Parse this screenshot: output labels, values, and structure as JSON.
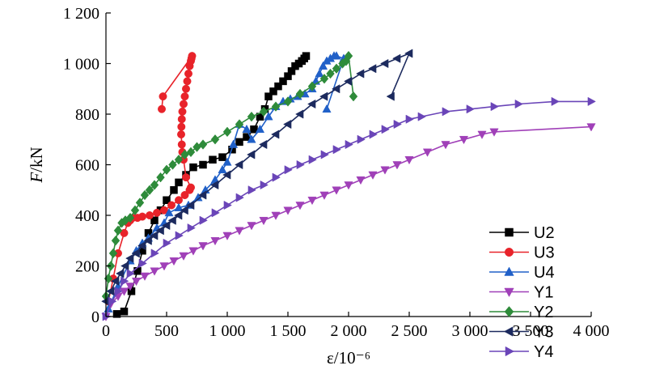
{
  "chart_data": {
    "type": "line",
    "xlabel": "ε/10⁻⁶",
    "ylabel_italic": "F",
    "ylabel_rest": "/kN",
    "xlim": [
      0,
      4000
    ],
    "ylim": [
      0,
      1200
    ],
    "xticks": [
      0,
      500,
      1000,
      1500,
      2000,
      2500,
      3000,
      3500,
      4000
    ],
    "xtick_labels": [
      "0",
      "500",
      "1 000",
      "1 500",
      "2 000",
      "2 500",
      "3 000",
      "3 500",
      "4 000"
    ],
    "yticks": [
      0,
      200,
      400,
      600,
      800,
      1000,
      1200
    ],
    "ytick_labels": [
      "0",
      "200",
      "400",
      "600",
      "800",
      "1 000",
      "1 200"
    ],
    "grid": false,
    "legend_position": "right",
    "series": [
      {
        "name": "U2",
        "color": "#000000",
        "marker": "square",
        "x": [
          90,
          150,
          210,
          260,
          300,
          350,
          400,
          450,
          500,
          560,
          600,
          660,
          720,
          800,
          880,
          960,
          1040,
          1100,
          1160,
          1220,
          1270,
          1310,
          1340,
          1380,
          1420,
          1460,
          1500,
          1530,
          1560,
          1590,
          1615,
          1635,
          1650
        ],
        "y": [
          10,
          20,
          100,
          180,
          260,
          330,
          380,
          420,
          460,
          500,
          530,
          560,
          590,
          600,
          620,
          630,
          660,
          690,
          710,
          740,
          790,
          820,
          870,
          890,
          910,
          930,
          950,
          970,
          990,
          1000,
          1010,
          1020,
          1030
        ]
      },
      {
        "name": "U3",
        "color": "#e8232a",
        "marker": "circle",
        "x": [
          20,
          60,
          100,
          150,
          180,
          200,
          220,
          260,
          300,
          360,
          420,
          480,
          540,
          600,
          650,
          690,
          700,
          660,
          640,
          630,
          625,
          620,
          622,
          625,
          630,
          640,
          650,
          660,
          670,
          680,
          690,
          700,
          705,
          710,
          470,
          460
        ],
        "y": [
          60,
          150,
          250,
          330,
          370,
          380,
          390,
          390,
          395,
          400,
          410,
          420,
          440,
          460,
          480,
          500,
          510,
          550,
          620,
          650,
          680,
          720,
          750,
          780,
          810,
          840,
          870,
          900,
          930,
          960,
          990,
          1010,
          1020,
          1030,
          870,
          820
        ]
      },
      {
        "name": "U4",
        "color": "#2060c8",
        "marker": "triangle-up",
        "x": [
          20,
          100,
          200,
          250,
          300,
          350,
          420,
          480,
          520,
          600,
          680,
          760,
          820,
          900,
          960,
          1000,
          1050,
          1100,
          1160,
          1200,
          1270,
          1340,
          1400,
          1460,
          1520,
          1580,
          1640,
          1700,
          1730,
          1760,
          1790,
          1820,
          1850,
          1880,
          1900,
          1960,
          1820
        ],
        "y": [
          30,
          120,
          220,
          260,
          290,
          310,
          350,
          370,
          410,
          430,
          440,
          470,
          500,
          540,
          580,
          610,
          680,
          760,
          740,
          700,
          740,
          790,
          830,
          850,
          860,
          870,
          880,
          900,
          930,
          960,
          990,
          1010,
          1020,
          1030,
          1030,
          1020,
          820
        ]
      },
      {
        "name": "Y1",
        "color": "#a040b8",
        "marker": "triangle-down",
        "x": [
          0,
          40,
          100,
          150,
          200,
          250,
          320,
          400,
          480,
          560,
          640,
          720,
          800,
          900,
          1000,
          1100,
          1200,
          1300,
          1400,
          1500,
          1600,
          1700,
          1800,
          1900,
          2000,
          2100,
          2200,
          2300,
          2400,
          2500,
          2650,
          2800,
          2950,
          3100,
          3200,
          4000
        ],
        "y": [
          0,
          50,
          80,
          100,
          120,
          140,
          160,
          180,
          200,
          220,
          240,
          260,
          280,
          300,
          320,
          340,
          360,
          380,
          400,
          420,
          440,
          460,
          480,
          500,
          520,
          540,
          560,
          580,
          600,
          620,
          650,
          680,
          700,
          720,
          730,
          750
        ]
      },
      {
        "name": "Y2",
        "color": "#2e8b3a",
        "marker": "diamond",
        "x": [
          0,
          20,
          40,
          60,
          80,
          100,
          130,
          160,
          200,
          240,
          280,
          320,
          360,
          400,
          450,
          500,
          550,
          600,
          650,
          700,
          750,
          800,
          900,
          1000,
          1100,
          1200,
          1300,
          1400,
          1500,
          1600,
          1700,
          1800,
          1850,
          1900,
          1950,
          1980,
          2000,
          2040
        ],
        "y": [
          80,
          150,
          200,
          250,
          300,
          340,
          370,
          380,
          390,
          420,
          450,
          480,
          500,
          520,
          550,
          580,
          600,
          620,
          640,
          650,
          670,
          680,
          700,
          730,
          760,
          790,
          810,
          830,
          850,
          880,
          910,
          940,
          960,
          980,
          1000,
          1010,
          1030,
          870
        ]
      },
      {
        "name": "Y3",
        "color": "#1c2a5e",
        "marker": "triangle-left",
        "x": [
          0,
          40,
          80,
          120,
          160,
          200,
          250,
          300,
          350,
          400,
          450,
          500,
          550,
          600,
          650,
          700,
          800,
          900,
          1000,
          1100,
          1200,
          1300,
          1400,
          1500,
          1600,
          1700,
          1800,
          1900,
          2000,
          2100,
          2200,
          2300,
          2400,
          2500,
          2350
        ],
        "y": [
          60,
          100,
          140,
          170,
          200,
          230,
          250,
          280,
          300,
          320,
          340,
          360,
          380,
          400,
          420,
          440,
          480,
          520,
          560,
          600,
          640,
          680,
          720,
          760,
          800,
          840,
          870,
          900,
          930,
          960,
          980,
          1000,
          1020,
          1040,
          870
        ]
      },
      {
        "name": "Y4",
        "color": "#6a45b8",
        "marker": "triangle-right",
        "x": [
          0,
          50,
          100,
          150,
          200,
          300,
          400,
          500,
          600,
          700,
          800,
          900,
          1000,
          1100,
          1200,
          1300,
          1400,
          1500,
          1600,
          1700,
          1800,
          1900,
          2000,
          2100,
          2200,
          2300,
          2400,
          2500,
          2600,
          2800,
          3000,
          3200,
          3400,
          3700,
          4000
        ],
        "y": [
          0,
          60,
          100,
          140,
          170,
          210,
          250,
          290,
          320,
          350,
          380,
          410,
          440,
          470,
          500,
          520,
          550,
          580,
          600,
          620,
          640,
          660,
          680,
          700,
          720,
          740,
          760,
          780,
          790,
          810,
          820,
          830,
          840,
          850,
          850
        ]
      }
    ]
  }
}
